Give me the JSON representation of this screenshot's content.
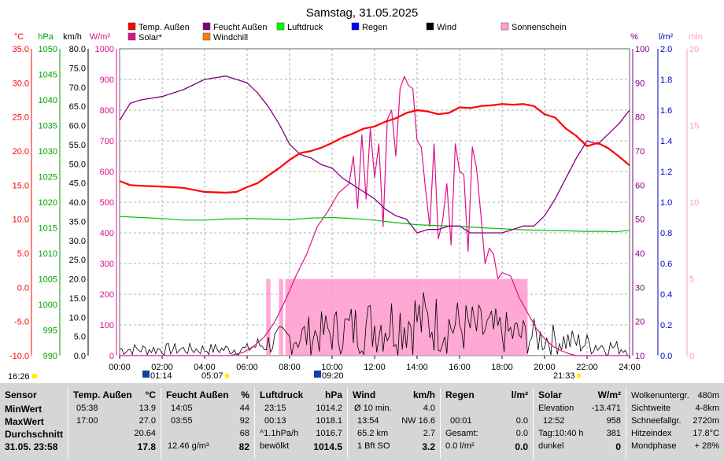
{
  "title": "Samstag, 31.05.2025",
  "axis_units": {
    "temp": "°C",
    "press": "hPa",
    "wind": "km/h",
    "solar": "W/m²",
    "hum": "%",
    "rain": "l/m²",
    "sun": "min"
  },
  "colors": {
    "temp": "#ff0000",
    "press": "#00c000",
    "hum": "#800080",
    "solar": "#e0108a",
    "wind": "#000000",
    "rain": "#0000c0",
    "sun": "#ff99cc",
    "windchill": "#ff8000",
    "grid": "#9a9a9a",
    "pressure_axis": "#00a000"
  },
  "legend": [
    {
      "label": "Temp. Außen",
      "color": "#ff0000"
    },
    {
      "label": "Feucht Außen",
      "color": "#800080"
    },
    {
      "label": "Luftdruck",
      "color": "#00ff00"
    },
    {
      "label": "Regen",
      "color": "#0000ff"
    },
    {
      "label": "Wind",
      "color": "#000000"
    },
    {
      "label": "Sonnenschein",
      "color": "#ffa0d0"
    },
    {
      "label": "Solar*",
      "color": "#e0108a"
    },
    {
      "label": "Windchill",
      "color": "#ff8000"
    }
  ],
  "markers": {
    "left_time": "16:26",
    "sunrise_time": "05:07",
    "sunset_time": "21:33",
    "moon_time_1": "01:14",
    "moon_time_2": "09:20"
  },
  "chart_data": {
    "type": "line",
    "title": "Samstag, 31.05.2025",
    "x_ticks": [
      "00:00",
      "02:00",
      "04:00",
      "06:00",
      "08:00",
      "10:00",
      "12:00",
      "14:00",
      "16:00",
      "18:00",
      "20:00",
      "22:00",
      "24:00"
    ],
    "axes": {
      "temp": {
        "unit": "°C",
        "range": [
          -10,
          35
        ],
        "ticks": [
          "35.0",
          "30.0",
          "25.0",
          "20.0",
          "15.0",
          "10.0",
          "5.0",
          "0.0",
          "-5.0",
          "-10.0"
        ]
      },
      "pressure": {
        "unit": "hPa",
        "range": [
          990,
          1050
        ],
        "ticks": [
          "1050",
          "1045",
          "1040",
          "1035",
          "1030",
          "1025",
          "1020",
          "1015",
          "1010",
          "1005",
          "1000",
          "995",
          "990"
        ]
      },
      "wind": {
        "unit": "km/h",
        "range": [
          0,
          80
        ],
        "ticks": [
          "80.0",
          "75.0",
          "70.0",
          "65.0",
          "60.0",
          "55.0",
          "50.0",
          "45.0",
          "40.0",
          "35.0",
          "30.0",
          "25.0",
          "20.0",
          "15.0",
          "10.0",
          "5.0",
          "0.0"
        ]
      },
      "solar": {
        "unit": "W/m²",
        "range": [
          0,
          1000
        ],
        "ticks": [
          "1000",
          "900",
          "800",
          "700",
          "600",
          "500",
          "400",
          "300",
          "200",
          "100",
          "0"
        ]
      },
      "humidity": {
        "unit": "%",
        "range": [
          10,
          100
        ],
        "ticks": [
          "100",
          "90",
          "80",
          "70",
          "60",
          "50",
          "40",
          "30",
          "20",
          "10"
        ]
      },
      "rain": {
        "unit": "l/m²",
        "range": [
          0,
          2
        ],
        "ticks": [
          "2.0",
          "1.8",
          "1.6",
          "1.4",
          "1.2",
          "1.0",
          "0.8",
          "0.6",
          "0.4",
          "0.2",
          "0.0"
        ]
      },
      "sunshine": {
        "unit": "min",
        "range": [
          0,
          20
        ],
        "ticks": [
          "20",
          "15",
          "10",
          "5",
          "0"
        ]
      }
    },
    "series": [
      {
        "name": "Temp. Außen",
        "axis": "temp",
        "x": [
          0,
          0.5,
          1,
          2,
          3,
          4,
          5,
          5.5,
          6,
          6.5,
          7,
          7.5,
          8,
          8.5,
          9,
          9.5,
          10,
          10.5,
          11,
          11.5,
          12,
          12.5,
          13,
          13.5,
          14,
          14.5,
          15,
          15.5,
          16,
          16.5,
          17,
          17.5,
          18,
          18.5,
          19,
          19.5,
          20,
          20.5,
          21,
          21.5,
          22,
          22.5,
          23,
          23.5,
          24
        ],
        "y": [
          15.6,
          15.0,
          14.9,
          14.8,
          14.6,
          14.0,
          13.9,
          14.0,
          14.7,
          15.3,
          16.4,
          17.5,
          18.7,
          19.7,
          20.0,
          20.5,
          21.2,
          22.0,
          22.6,
          23.3,
          23.6,
          24.3,
          24.8,
          25.6,
          26.0,
          25.8,
          25.4,
          25.6,
          26.4,
          26.3,
          26.6,
          26.7,
          26.9,
          26.8,
          26.9,
          26.6,
          25.4,
          24.9,
          23.3,
          22.2,
          20.7,
          21.2,
          20.4,
          19.2,
          17.9
        ]
      },
      {
        "name": "Luftdruck",
        "axis": "pressure",
        "x": [
          0,
          1,
          2,
          3,
          4,
          5,
          6,
          7,
          8,
          9,
          10,
          11,
          12,
          13,
          14,
          15,
          16,
          17,
          18,
          19,
          20,
          21,
          22,
          23,
          23.3,
          24
        ],
        "y": [
          1017.2,
          1017.0,
          1016.8,
          1016.5,
          1016.5,
          1016.7,
          1016.8,
          1016.7,
          1016.6,
          1016.9,
          1017.0,
          1016.8,
          1016.5,
          1016.0,
          1015.6,
          1015.4,
          1015.3,
          1015.0,
          1014.8,
          1014.6,
          1014.5,
          1014.4,
          1014.3,
          1014.3,
          1014.2,
          1014.5
        ]
      },
      {
        "name": "Feucht Außen",
        "axis": "humidity",
        "x": [
          0,
          0.5,
          1,
          2,
          3,
          4,
          5,
          5.5,
          6,
          6.5,
          7,
          7.5,
          8,
          8.5,
          9,
          9.5,
          10,
          10.5,
          11,
          11.5,
          12,
          12.5,
          13,
          13.5,
          14,
          14.5,
          15,
          15.5,
          16,
          16.5,
          17,
          17.5,
          18,
          18.5,
          19,
          19.5,
          20,
          20.5,
          21,
          21.5,
          22,
          22.5,
          23,
          23.5,
          24
        ],
        "y": [
          79,
          84,
          85,
          86,
          88,
          91,
          92,
          91,
          90,
          87,
          83,
          78,
          72,
          69,
          68,
          66,
          65,
          62,
          60,
          58,
          56,
          53,
          51,
          50,
          46,
          47,
          47,
          48,
          48,
          46,
          46,
          46,
          46,
          47,
          48,
          48,
          51,
          56,
          62,
          68,
          73,
          72,
          75,
          78,
          82
        ]
      },
      {
        "name": "Solar*",
        "axis": "solar",
        "x": [
          0,
          5.2,
          5.8,
          6.3,
          6.8,
          7.3,
          7.8,
          8.3,
          8.8,
          9.3,
          9.8,
          10.3,
          10.8,
          11.0,
          11.2,
          11.4,
          11.6,
          11.8,
          12.0,
          12.2,
          12.4,
          12.6,
          12.8,
          13.0,
          13.2,
          13.4,
          13.6,
          13.8,
          14.0,
          14.2,
          14.4,
          14.6,
          14.8,
          15.0,
          15.2,
          15.4,
          15.6,
          15.8,
          16.0,
          16.2,
          16.4,
          16.6,
          16.8,
          17.0,
          17.2,
          17.4,
          17.6,
          17.8,
          18.0,
          18.4,
          18.8,
          19.2,
          19.6,
          20.0,
          20.4,
          20.8,
          21.2,
          21.5,
          22,
          24
        ],
        "y": [
          0,
          0,
          10,
          30,
          60,
          110,
          180,
          260,
          330,
          420,
          470,
          530,
          560,
          650,
          480,
          720,
          510,
          740,
          580,
          690,
          420,
          770,
          800,
          650,
          870,
          910,
          880,
          870,
          700,
          680,
          540,
          420,
          690,
          380,
          440,
          560,
          360,
          690,
          600,
          590,
          340,
          680,
          610,
          460,
          300,
          350,
          330,
          250,
          270,
          260,
          190,
          140,
          90,
          55,
          30,
          15,
          5,
          0,
          0,
          0
        ]
      }
    ],
    "wind_bars": {
      "unit": "km/h",
      "approx_max": 20,
      "note": "dense gusts from ~06:00 to ~21:00, peaks near 14:00"
    },
    "sunshine_blocks": {
      "unit": "min",
      "approx_level": 5,
      "intervals": [
        [
          6.9,
          7.1
        ],
        [
          7.5,
          7.7
        ],
        [
          7.8,
          19.2
        ]
      ]
    }
  },
  "panel": {
    "sensor": {
      "header": "Sensor",
      "rows": [
        "MinWert",
        "MaxWert",
        "Durchschnitt",
        "31.05. 23:58"
      ]
    },
    "temp": {
      "header": "Temp. Außen",
      "unit": "°C",
      "rows": [
        [
          "05:38",
          "13.9"
        ],
        [
          "17:00",
          "27.0"
        ],
        [
          "",
          "20.64"
        ],
        [
          "",
          "17.8"
        ]
      ]
    },
    "hum": {
      "header": "Feucht Außen",
      "unit": "%",
      "rows": [
        [
          "14:05",
          "44"
        ],
        [
          "03:55",
          "92"
        ],
        [
          "",
          "68"
        ],
        [
          "12.46 g/m³",
          "82"
        ]
      ]
    },
    "press": {
      "header": "Luftdruck",
      "unit": "hPa",
      "rows": [
        [
          "23:15",
          "1014.2"
        ],
        [
          "00:13",
          "1018.1"
        ],
        [
          "^1.1hPa/h",
          "1016.7"
        ],
        [
          "bewölkt",
          "1014.5"
        ]
      ]
    },
    "wind": {
      "header": "Wind",
      "unit": "km/h",
      "rows": [
        [
          "Ø 10 min.",
          "4.0"
        ],
        [
          "13:54",
          "NW 16.6"
        ],
        [
          "65.2 km",
          "2.7"
        ],
        [
          "1 Bft SO",
          "3.2"
        ]
      ]
    },
    "rain": {
      "header": "Regen",
      "unit": "l/m²",
      "rows": [
        [
          "",
          ""
        ],
        [
          "00:01",
          "0.0"
        ],
        [
          "Gesamt:",
          "0.0"
        ],
        [
          "0.0 l/m²",
          "0.0"
        ]
      ]
    },
    "solar": {
      "header": "Solar",
      "unit": "W/m²",
      "rows": [
        [
          "Elevation",
          "-13.471"
        ],
        [
          "12:52",
          "958"
        ],
        [
          "Tag:10:40 h",
          "381"
        ],
        [
          "dunkel",
          "0"
        ]
      ]
    },
    "extra": {
      "rows": [
        [
          "Wolkenuntergr.",
          "480m"
        ],
        [
          "Sichtweite",
          "4-8km"
        ],
        [
          "Schneefallgr.",
          "2720m"
        ],
        [
          "Hitzeindex",
          "17.8°C"
        ],
        [
          "Mondphase",
          "+ 28%"
        ]
      ]
    }
  }
}
